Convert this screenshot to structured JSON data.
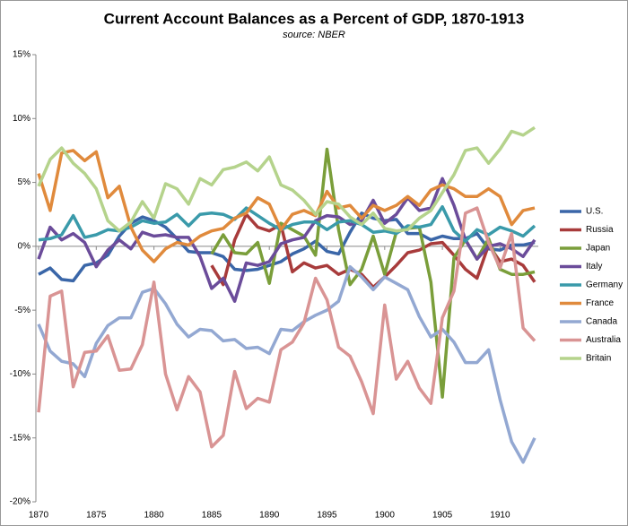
{
  "chart_data": {
    "type": "line",
    "title": "Current Account Balances as a Percent of GDP, 1870-1913",
    "subtitle": "source: NBER",
    "x": [
      1870,
      1871,
      1872,
      1873,
      1874,
      1875,
      1876,
      1877,
      1878,
      1879,
      1880,
      1881,
      1882,
      1883,
      1884,
      1885,
      1886,
      1887,
      1888,
      1889,
      1890,
      1891,
      1892,
      1893,
      1894,
      1895,
      1896,
      1897,
      1898,
      1899,
      1900,
      1901,
      1902,
      1903,
      1904,
      1905,
      1906,
      1907,
      1908,
      1909,
      1910,
      1911,
      1912,
      1913
    ],
    "xlim": [
      1870,
      1913
    ],
    "xticks": [
      1870,
      1875,
      1880,
      1885,
      1890,
      1895,
      1900,
      1905,
      1910
    ],
    "ylim": [
      -20,
      15
    ],
    "yticks": [
      {
        "value": -20,
        "label": "-20%"
      },
      {
        "value": -15,
        "label": "-15%"
      },
      {
        "value": -10,
        "label": "-10%"
      },
      {
        "value": -5,
        "label": "-5%"
      },
      {
        "value": 0,
        "label": "0%"
      },
      {
        "value": 5,
        "label": "5%"
      },
      {
        "value": 10,
        "label": "10%"
      },
      {
        "value": 15,
        "label": "15%"
      }
    ],
    "legend": "right",
    "series": [
      {
        "name": "U.S.",
        "color": "#3a66a8",
        "values": [
          -2.2,
          -1.7,
          -2.6,
          -2.7,
          -1.5,
          -1.3,
          -0.7,
          0.8,
          1.8,
          2.3,
          2.0,
          1.5,
          0.6,
          -0.4,
          -0.5,
          -0.5,
          -0.8,
          -1.8,
          -1.9,
          -1.8,
          -1.5,
          -1.2,
          -0.6,
          -0.2,
          0.4,
          -0.4,
          -0.6,
          1.1,
          2.6,
          2.2,
          2.0,
          2.1,
          1.0,
          1.0,
          0.5,
          0.8,
          0.6,
          0.6,
          1.0,
          -0.2,
          -0.3,
          0.1,
          0.1,
          0.3
        ]
      },
      {
        "name": "Russia",
        "color": "#a83b3b",
        "values": [
          null,
          null,
          null,
          null,
          null,
          null,
          null,
          null,
          null,
          null,
          null,
          null,
          null,
          null,
          null,
          -1.5,
          -3.0,
          0.5,
          2.5,
          1.5,
          1.2,
          1.7,
          -2.0,
          -1.3,
          -1.7,
          -1.5,
          -2.2,
          -1.8,
          -2.2,
          -3.2,
          -2.4,
          -1.5,
          -0.5,
          -0.3,
          0.2,
          0.3,
          -0.7,
          -1.8,
          -2.5,
          0.1,
          -1.2,
          -1.0,
          -1.5,
          -2.8
        ]
      },
      {
        "name": "Japan",
        "color": "#7a9e3a",
        "values": [
          null,
          null,
          null,
          null,
          null,
          null,
          null,
          null,
          null,
          null,
          null,
          null,
          null,
          null,
          null,
          -0.6,
          0.9,
          -0.5,
          -0.6,
          0.3,
          -2.9,
          1.8,
          1.3,
          0.8,
          -0.7,
          7.6,
          1.3,
          -3.0,
          -1.8,
          0.8,
          -2.2,
          1.1,
          1.4,
          1.5,
          -2.8,
          -11.8,
          -0.9,
          0.5,
          -1.0,
          0.6,
          -1.8,
          -2.2,
          -2.2,
          -2.0
        ]
      },
      {
        "name": "Italy",
        "color": "#6b4c9a",
        "values": [
          -1.0,
          1.5,
          0.5,
          1.0,
          0.3,
          -1.6,
          -0.3,
          0.5,
          -0.2,
          1.1,
          0.8,
          0.9,
          0.7,
          0.7,
          -0.8,
          -3.3,
          -2.5,
          -4.3,
          -1.3,
          -1.5,
          -1.2,
          0.2,
          0.5,
          0.7,
          2.0,
          2.4,
          2.3,
          1.7,
          2.0,
          3.6,
          1.8,
          2.5,
          3.8,
          2.8,
          3.0,
          5.3,
          3.2,
          0.5,
          -1.0,
          0.0,
          0.2,
          -0.2,
          -0.8,
          0.5
        ]
      },
      {
        "name": "Germany",
        "color": "#3a9aaa",
        "values": [
          0.5,
          0.6,
          0.9,
          2.4,
          0.7,
          0.9,
          1.3,
          1.2,
          1.5,
          2.0,
          1.8,
          1.9,
          2.5,
          1.6,
          2.5,
          2.6,
          2.5,
          2.1,
          3.0,
          2.4,
          1.8,
          1.3,
          1.7,
          1.9,
          1.9,
          1.3,
          1.9,
          2.0,
          1.7,
          1.1,
          1.2,
          1.0,
          1.6,
          1.5,
          1.7,
          3.1,
          1.2,
          0.4,
          1.3,
          0.9,
          1.5,
          1.2,
          0.8,
          1.6
        ]
      },
      {
        "name": "France",
        "color": "#e08a3c",
        "values": [
          5.7,
          2.8,
          7.3,
          7.5,
          6.7,
          7.4,
          3.8,
          4.7,
          1.5,
          -0.3,
          -1.2,
          -0.2,
          0.3,
          0.1,
          0.8,
          1.2,
          1.4,
          2.2,
          2.6,
          3.8,
          3.3,
          1.3,
          2.5,
          2.8,
          2.4,
          4.3,
          3.0,
          3.2,
          2.2,
          3.2,
          2.8,
          3.2,
          3.9,
          3.2,
          4.4,
          4.8,
          4.5,
          3.9,
          3.9,
          4.5,
          3.9,
          1.7,
          2.8,
          3.0
        ]
      },
      {
        "name": "Canada",
        "color": "#93a8d2",
        "values": [
          -6.1,
          -8.2,
          -9.0,
          -9.2,
          -10.2,
          -7.6,
          -6.2,
          -5.6,
          -5.6,
          -3.6,
          -3.3,
          -4.5,
          -6.1,
          -7.1,
          -6.5,
          -6.6,
          -7.4,
          -7.3,
          -8.0,
          -7.9,
          -8.4,
          -6.5,
          -6.6,
          -5.9,
          -5.4,
          -5.0,
          -4.3,
          -1.6,
          -2.4,
          -3.4,
          -2.4,
          -2.9,
          -3.4,
          -5.5,
          -7.1,
          -6.5,
          -7.5,
          -9.1,
          -9.1,
          -8.1,
          -12.0,
          -15.3,
          -16.9,
          -15.0
        ]
      },
      {
        "name": "Australia",
        "color": "#d99494",
        "values": [
          -13.0,
          -3.9,
          -3.5,
          -11.0,
          -8.3,
          -8.2,
          -7.0,
          -9.7,
          -9.6,
          -7.7,
          -2.8,
          -10.0,
          -12.8,
          -10.2,
          -11.4,
          -15.7,
          -14.8,
          -9.8,
          -12.7,
          -11.9,
          -12.2,
          -8.1,
          -7.5,
          -6.0,
          -2.5,
          -4.2,
          -7.9,
          -8.6,
          -10.6,
          -13.1,
          -4.6,
          -10.4,
          -9.0,
          -11.1,
          -12.3,
          -5.6,
          -3.5,
          2.6,
          3.0,
          0.3,
          -1.7,
          1.0,
          -6.4,
          -7.4
        ]
      },
      {
        "name": "Britain",
        "color": "#b5d38c",
        "values": [
          4.7,
          6.8,
          7.7,
          6.5,
          5.7,
          4.5,
          2.0,
          1.2,
          1.9,
          3.5,
          2.2,
          4.9,
          4.5,
          3.3,
          5.3,
          4.8,
          6.0,
          6.2,
          6.6,
          5.9,
          7.0,
          4.8,
          4.4,
          3.6,
          2.5,
          3.5,
          3.3,
          2.3,
          1.7,
          2.6,
          1.4,
          1.2,
          1.3,
          2.2,
          2.8,
          4.2,
          5.6,
          7.5,
          7.7,
          6.5,
          7.6,
          9.0,
          8.7,
          9.3
        ]
      }
    ]
  }
}
